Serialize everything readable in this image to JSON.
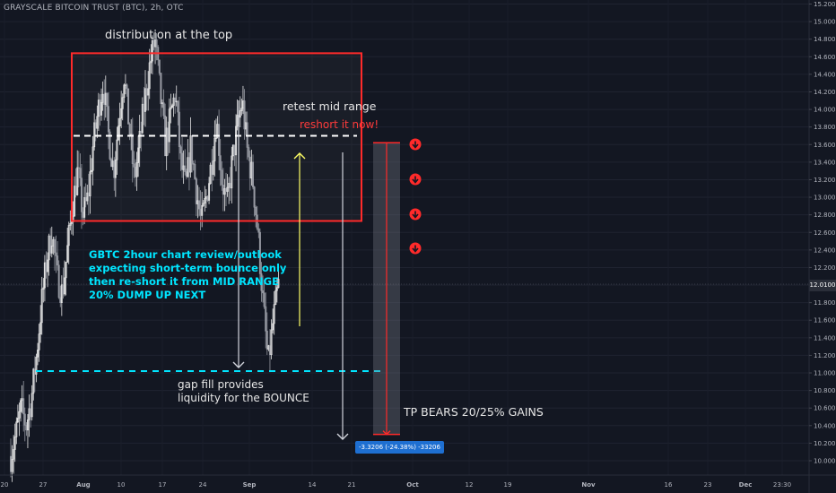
{
  "symbol_title": "GRAYSCALE BITCOIN TRUST (BTC), 2h, OTC",
  "current_price_label": "12.0100",
  "measure_label": "-3.3206 (-24.38%) -33206",
  "annotations": {
    "top": "distribution at the top",
    "retest": "retest mid range",
    "reshort": "reshort it now!",
    "review": [
      "GBTC 2hour chart review/outlook",
      "expecting short-term bounce only",
      "then re-short it from MID RANGE",
      "20% DUMP UP NEXT"
    ],
    "gap": [
      "gap fill provides",
      "liquidity for the BOUNCE"
    ],
    "tp": "TP BEARS 20/25% GAINS"
  },
  "colors": {
    "background": "#131722",
    "bull": "#e6e6e6",
    "bear": "#9598a1",
    "box": "#ff2a2a",
    "gap_line": "#00e5ff",
    "up_arrow": "#ffff66",
    "measure": "#ff2a2a",
    "label_blue": "#1e6fd1"
  },
  "chart_data": {
    "type": "candlestick",
    "title": "",
    "xlabel": "",
    "ylabel": "",
    "ylim": [
      9.95,
      15.2
    ],
    "y_ticks": [
      "15.2000",
      "15.0000",
      "14.8000",
      "14.6000",
      "14.4000",
      "14.2000",
      "14.0000",
      "13.8000",
      "13.6000",
      "13.4000",
      "13.2000",
      "13.0000",
      "12.8000",
      "12.6000",
      "12.4000",
      "12.2000",
      "12.0000",
      "11.8000",
      "11.6000",
      "11.4000",
      "11.2000",
      "11.0000",
      "10.8000",
      "10.6000",
      "10.4000",
      "10.2000",
      "10.0000"
    ],
    "x_ticks": [
      "20",
      "27",
      "Aug",
      "10",
      "17",
      "24",
      "Sep",
      "14",
      "21",
      "Oct",
      "12",
      "19",
      "Nov",
      "16",
      "23",
      "Dec",
      "23:30"
    ],
    "grid": true,
    "price_path": [
      10.05,
      10.3,
      10.6,
      10.4,
      10.7,
      11.2,
      11.8,
      12.3,
      12.6,
      12.1,
      11.9,
      12.4,
      12.9,
      13.3,
      12.8,
      13.0,
      13.6,
      14.0,
      14.3,
      13.7,
      13.3,
      13.9,
      14.4,
      13.8,
      13.2,
      13.6,
      14.1,
      14.5,
      14.8,
      14.2,
      13.6,
      13.9,
      14.2,
      13.4,
      13.1,
      13.6,
      13.1,
      12.7,
      13.0,
      13.4,
      13.9,
      13.2,
      12.9,
      13.4,
      13.8,
      14.1,
      13.5,
      13.2,
      12.6,
      11.8,
      11.1,
      11.6,
      12.0
    ],
    "levels": {
      "box_top": 14.64,
      "box_bottom": 12.73,
      "mid_range": 13.7,
      "gap_fill": 11.02,
      "current": 12.01,
      "measure_top": 13.62,
      "measure_bottom": 10.3
    }
  }
}
